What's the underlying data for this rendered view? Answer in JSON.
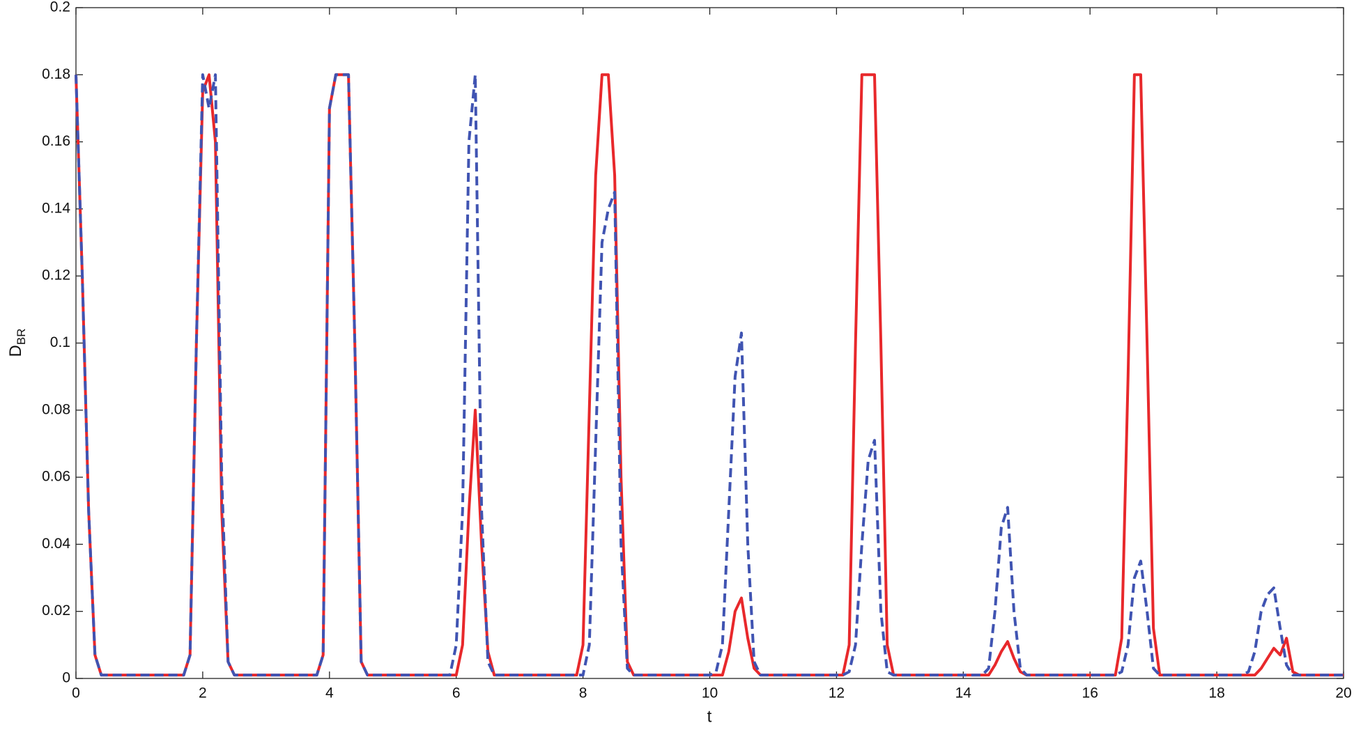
{
  "chart_data": {
    "type": "line",
    "xlabel": "t",
    "ylabel": "D",
    "ylabel_subscript": "BR",
    "x": [
      0,
      0.1,
      0.2,
      0.3,
      0.4,
      0.5,
      0.6,
      0.7,
      0.8,
      0.9,
      1,
      1.1,
      1.2,
      1.3,
      1.4,
      1.5,
      1.6,
      1.7,
      1.8,
      1.9,
      2,
      2.1,
      2.2,
      2.3,
      2.4,
      2.5,
      2.6,
      2.7,
      2.8,
      2.9,
      3,
      3.1,
      3.2,
      3.3,
      3.4,
      3.5,
      3.6,
      3.7,
      3.8,
      3.9,
      4,
      4.1,
      4.2,
      4.3,
      4.4,
      4.5,
      4.6,
      4.7,
      4.8,
      4.9,
      5,
      5.1,
      5.2,
      5.3,
      5.4,
      5.5,
      5.6,
      5.7,
      5.8,
      5.9,
      6,
      6.1,
      6.2,
      6.3,
      6.4,
      6.5,
      6.6,
      6.7,
      6.8,
      6.9,
      7,
      7.1,
      7.2,
      7.3,
      7.4,
      7.5,
      7.6,
      7.7,
      7.8,
      7.9,
      8,
      8.1,
      8.2,
      8.3,
      8.4,
      8.5,
      8.6,
      8.7,
      8.8,
      8.9,
      9,
      9.1,
      9.2,
      9.3,
      9.4,
      9.5,
      9.6,
      9.7,
      9.8,
      9.9,
      10,
      10.1,
      10.2,
      10.3,
      10.4,
      10.5,
      10.6,
      10.7,
      10.8,
      10.9,
      11,
      11.1,
      11.2,
      11.3,
      11.4,
      11.5,
      11.6,
      11.7,
      11.8,
      11.9,
      12,
      12.1,
      12.2,
      12.3,
      12.4,
      12.5,
      12.6,
      12.7,
      12.8,
      12.9,
      13,
      13.1,
      13.2,
      13.3,
      13.4,
      13.5,
      13.6,
      13.7,
      13.8,
      13.9,
      14,
      14.1,
      14.2,
      14.3,
      14.4,
      14.5,
      14.6,
      14.7,
      14.8,
      14.9,
      15,
      15.1,
      15.2,
      15.3,
      15.4,
      15.5,
      15.6,
      15.7,
      15.8,
      15.9,
      16,
      16.1,
      16.2,
      16.3,
      16.4,
      16.5,
      16.6,
      16.7,
      16.8,
      16.9,
      17,
      17.1,
      17.2,
      17.3,
      17.4,
      17.5,
      17.6,
      17.7,
      17.8,
      17.9,
      18,
      18.1,
      18.2,
      18.3,
      18.4,
      18.5,
      18.6,
      18.7,
      18.8,
      18.9,
      19,
      19.1,
      19.2,
      19.3,
      19.4,
      19.5,
      19.6,
      19.7,
      19.8,
      19.9,
      20
    ],
    "series": [
      {
        "color": "#e8282b",
        "dash": false,
        "values": [
          0.18,
          0.12,
          0.05,
          0.007,
          0.001,
          0.001,
          0.001,
          0.001,
          0.001,
          0.001,
          0.001,
          0.001,
          0.001,
          0.001,
          0.001,
          0.001,
          0.001,
          0.001,
          0.007,
          0.1,
          0.175,
          0.18,
          0.16,
          0.05,
          0.005,
          0.001,
          0.001,
          0.001,
          0.001,
          0.001,
          0.001,
          0.001,
          0.001,
          0.001,
          0.001,
          0.001,
          0.001,
          0.001,
          0.001,
          0.007,
          0.17,
          0.18,
          0.18,
          0.18,
          0.1,
          0.005,
          0.001,
          0.001,
          0.001,
          0.001,
          0.001,
          0.001,
          0.001,
          0.001,
          0.001,
          0.001,
          0.001,
          0.001,
          0.001,
          0.001,
          0.001,
          0.01,
          0.05,
          0.08,
          0.04,
          0.008,
          0.001,
          0.001,
          0.001,
          0.001,
          0.001,
          0.001,
          0.001,
          0.001,
          0.001,
          0.001,
          0.001,
          0.001,
          0.001,
          0.001,
          0.01,
          0.08,
          0.15,
          0.18,
          0.18,
          0.15,
          0.06,
          0.005,
          0.001,
          0.001,
          0.001,
          0.001,
          0.001,
          0.001,
          0.001,
          0.001,
          0.001,
          0.001,
          0.001,
          0.001,
          0.001,
          0.001,
          0.001,
          0.008,
          0.02,
          0.024,
          0.012,
          0.003,
          0.001,
          0.001,
          0.001,
          0.001,
          0.001,
          0.001,
          0.001,
          0.001,
          0.001,
          0.001,
          0.001,
          0.001,
          0.001,
          0.001,
          0.01,
          0.1,
          0.18,
          0.18,
          0.18,
          0.1,
          0.01,
          0.001,
          0.001,
          0.001,
          0.001,
          0.001,
          0.001,
          0.001,
          0.001,
          0.001,
          0.001,
          0.001,
          0.001,
          0.001,
          0.001,
          0.001,
          0.001,
          0.004,
          0.008,
          0.011,
          0.006,
          0.002,
          0.001,
          0.001,
          0.001,
          0.001,
          0.001,
          0.001,
          0.001,
          0.001,
          0.001,
          0.001,
          0.001,
          0.001,
          0.001,
          0.001,
          0.001,
          0.012,
          0.09,
          0.18,
          0.18,
          0.1,
          0.015,
          0.001,
          0.001,
          0.001,
          0.001,
          0.001,
          0.001,
          0.001,
          0.001,
          0.001,
          0.001,
          0.001,
          0.001,
          0.001,
          0.001,
          0.001,
          0.001,
          0.003,
          0.006,
          0.009,
          0.007,
          0.012,
          0.002,
          0.001,
          0.001,
          0.001,
          0.001,
          0.001,
          0.001,
          0.001,
          0.001
        ]
      },
      {
        "color": "#4054b2",
        "dash": true,
        "values": [
          0.18,
          0.12,
          0.05,
          0.007,
          0.001,
          0.001,
          0.001,
          0.001,
          0.001,
          0.001,
          0.001,
          0.001,
          0.001,
          0.001,
          0.001,
          0.001,
          0.001,
          0.001,
          0.007,
          0.1,
          0.18,
          0.17,
          0.18,
          0.06,
          0.005,
          0.001,
          0.001,
          0.001,
          0.001,
          0.001,
          0.001,
          0.001,
          0.001,
          0.001,
          0.001,
          0.001,
          0.001,
          0.001,
          0.001,
          0.007,
          0.17,
          0.18,
          0.18,
          0.18,
          0.1,
          0.005,
          0.001,
          0.001,
          0.001,
          0.001,
          0.001,
          0.001,
          0.001,
          0.001,
          0.001,
          0.001,
          0.001,
          0.001,
          0.001,
          0.001,
          0.01,
          0.05,
          0.16,
          0.18,
          0.05,
          0.005,
          0.001,
          0.001,
          0.001,
          0.001,
          0.001,
          0.001,
          0.001,
          0.001,
          0.001,
          0.001,
          0.001,
          0.001,
          0.001,
          0.001,
          0.001,
          0.01,
          0.07,
          0.13,
          0.14,
          0.145,
          0.04,
          0.003,
          0.001,
          0.001,
          0.001,
          0.001,
          0.001,
          0.001,
          0.001,
          0.001,
          0.001,
          0.001,
          0.001,
          0.001,
          0.001,
          0.002,
          0.01,
          0.05,
          0.09,
          0.103,
          0.04,
          0.005,
          0.001,
          0.001,
          0.001,
          0.001,
          0.001,
          0.001,
          0.001,
          0.001,
          0.001,
          0.001,
          0.001,
          0.001,
          0.001,
          0.001,
          0.002,
          0.01,
          0.04,
          0.065,
          0.071,
          0.02,
          0.002,
          0.001,
          0.001,
          0.001,
          0.001,
          0.001,
          0.001,
          0.001,
          0.001,
          0.001,
          0.001,
          0.001,
          0.001,
          0.001,
          0.001,
          0.001,
          0.003,
          0.02,
          0.045,
          0.051,
          0.02,
          0.003,
          0.001,
          0.001,
          0.001,
          0.001,
          0.001,
          0.001,
          0.001,
          0.001,
          0.001,
          0.001,
          0.001,
          0.001,
          0.001,
          0.001,
          0.001,
          0.002,
          0.01,
          0.03,
          0.035,
          0.02,
          0.003,
          0.001,
          0.001,
          0.001,
          0.001,
          0.001,
          0.001,
          0.001,
          0.001,
          0.001,
          0.001,
          0.001,
          0.001,
          0.001,
          0.001,
          0.002,
          0.008,
          0.02,
          0.025,
          0.027,
          0.015,
          0.004,
          0.001,
          0.001,
          0.001,
          0.001,
          0.001,
          0.001,
          0.001,
          0.001,
          0.001
        ]
      }
    ],
    "xlim": [
      0,
      20
    ],
    "xticks": [
      0,
      2,
      4,
      6,
      8,
      10,
      12,
      14,
      16,
      18,
      20
    ],
    "ylim": [
      0,
      0.2
    ],
    "yticks": [
      0,
      0.02,
      0.04,
      0.06,
      0.08,
      0.1,
      0.12,
      0.14,
      0.16,
      0.18,
      0.2
    ],
    "grid": false
  }
}
